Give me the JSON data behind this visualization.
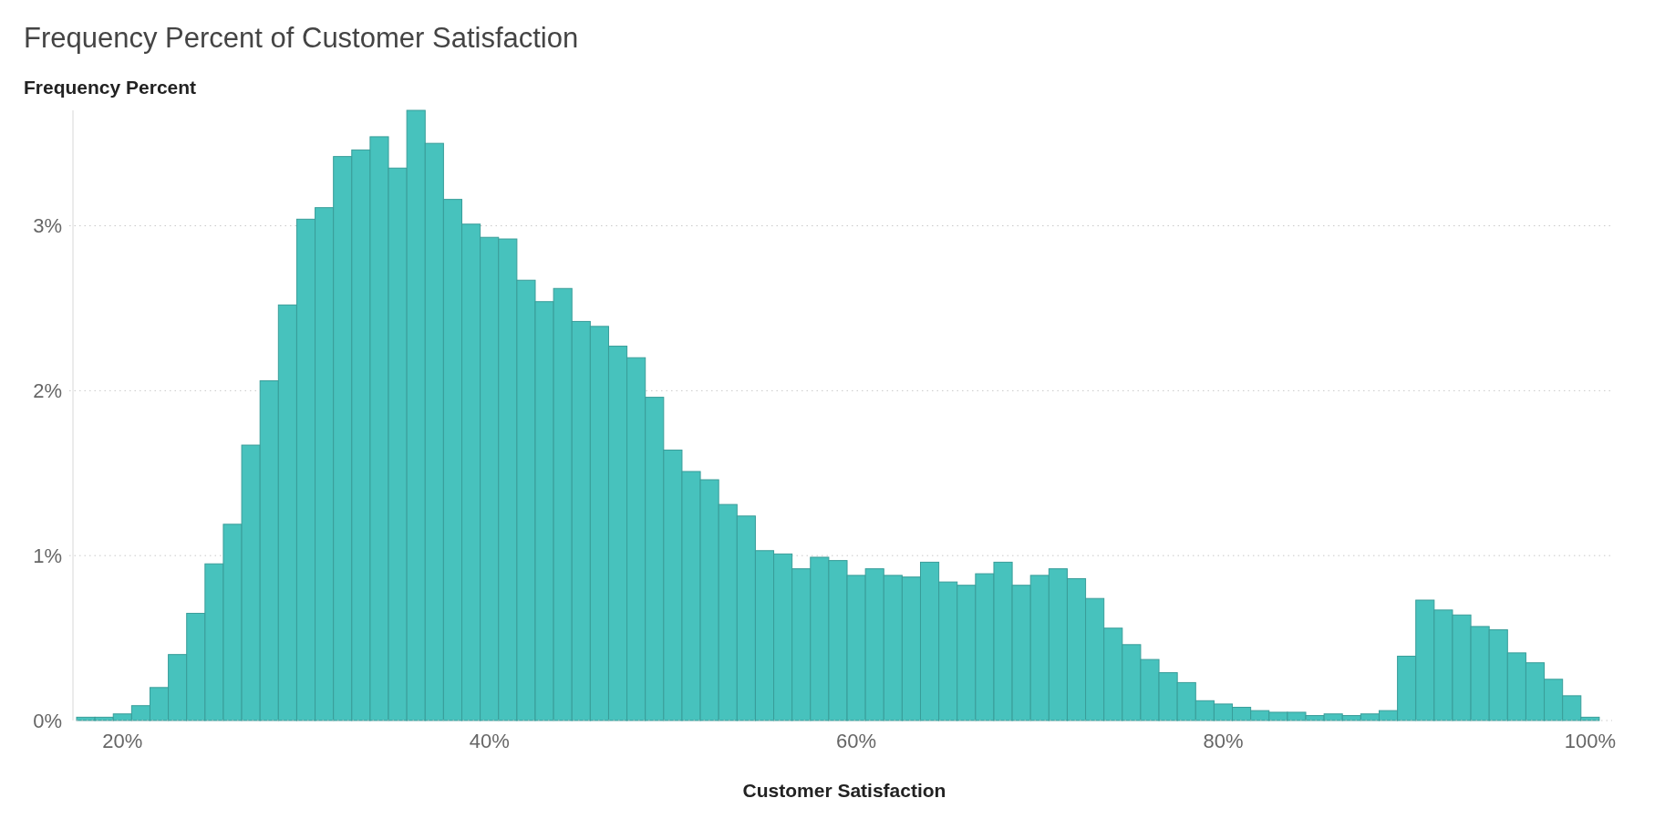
{
  "chart_data": {
    "type": "histogram",
    "title": "Frequency Percent of Customer Satisfaction",
    "ylabel": "Frequency Percent",
    "xlabel": "Customer Satisfaction",
    "bins": [
      17.5,
      18.5,
      19.5,
      20.5,
      21.5,
      22.5,
      23.5,
      24.5,
      25.5,
      26.5,
      27.5,
      28.5,
      29.5,
      30.5,
      31.5,
      32.5,
      33.5,
      34.5,
      35.5,
      36.5,
      37.5,
      38.5,
      39.5,
      40.5,
      41.5,
      42.5,
      43.5,
      44.5,
      45.5,
      46.5,
      47.5,
      48.5,
      49.5,
      50.5,
      51.5,
      52.5,
      53.5,
      54.5,
      55.5,
      56.5,
      57.5,
      58.5,
      59.5,
      60.5,
      61.5,
      62.5,
      63.5,
      64.5,
      65.5,
      66.5,
      67.5,
      68.5,
      69.5,
      70.5,
      71.5,
      72.5,
      73.5,
      74.5,
      75.5,
      76.5,
      77.5,
      78.5,
      79.5,
      80.5,
      81.5,
      82.5,
      83.5,
      84.5,
      85.5,
      86.5,
      87.5,
      88.5,
      89.5,
      90.5,
      91.5,
      92.5,
      93.5,
      94.5,
      95.5,
      96.5,
      97.5,
      98.5,
      99.5,
      100.5
    ],
    "values": [
      0.02,
      0.02,
      0.04,
      0.09,
      0.2,
      0.4,
      0.65,
      0.95,
      1.19,
      1.67,
      2.06,
      2.52,
      3.04,
      3.11,
      3.42,
      3.46,
      3.54,
      3.35,
      3.7,
      3.5,
      3.16,
      3.01,
      2.93,
      2.92,
      2.67,
      2.54,
      2.62,
      2.42,
      2.39,
      2.27,
      2.2,
      1.96,
      1.64,
      1.51,
      1.46,
      1.31,
      1.24,
      1.03,
      1.01,
      0.92,
      0.99,
      0.97,
      0.88,
      0.92,
      0.88,
      0.87,
      0.96,
      0.84,
      0.82,
      0.89,
      0.96,
      0.82,
      0.88,
      0.92,
      0.86,
      0.74,
      0.56,
      0.46,
      0.37,
      0.29,
      0.23,
      0.12,
      0.1,
      0.08,
      0.06,
      0.05,
      0.05,
      0.03,
      0.04,
      0.03,
      0.04,
      0.06,
      0.39,
      0.73,
      0.67,
      0.64,
      0.57,
      0.55,
      0.41,
      0.35,
      0.25,
      0.15,
      0.02
    ],
    "color": "#47c2bd",
    "xlim": [
      17.5,
      101.2
    ],
    "xticks": [
      {
        "value": 20,
        "label": "20%"
      },
      {
        "value": 40,
        "label": "40%"
      },
      {
        "value": 60,
        "label": "60%"
      },
      {
        "value": 80,
        "label": "80%"
      },
      {
        "value": 100,
        "label": "100%"
      }
    ],
    "ylim": [
      0,
      3.7
    ],
    "yticks": [
      {
        "value": 0,
        "label": "0%"
      },
      {
        "value": 1,
        "label": "1%"
      },
      {
        "value": 2,
        "label": "2%"
      },
      {
        "value": 3,
        "label": "3%"
      }
    ],
    "grid": "y"
  }
}
